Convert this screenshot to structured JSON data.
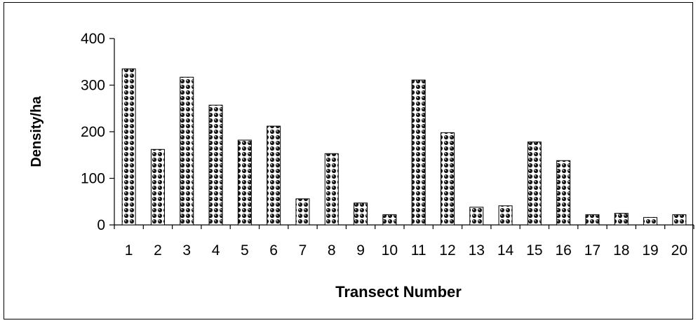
{
  "chart_data": {
    "type": "bar",
    "categories": [
      "1",
      "2",
      "3",
      "4",
      "5",
      "6",
      "7",
      "8",
      "9",
      "10",
      "11",
      "12",
      "13",
      "14",
      "15",
      "16",
      "17",
      "18",
      "19",
      "20"
    ],
    "values": [
      335,
      162,
      317,
      257,
      182,
      212,
      56,
      153,
      47,
      22,
      311,
      198,
      38,
      41,
      178,
      138,
      22,
      25,
      16,
      22
    ],
    "xlabel": "Transect Number",
    "ylabel": "Density/ha",
    "ylim": [
      0,
      400
    ],
    "yticks": [
      "0",
      "100",
      "200",
      "300",
      "400"
    ],
    "grid": false,
    "legend": "none",
    "bar_pattern": "dotted (black dots on white)"
  }
}
